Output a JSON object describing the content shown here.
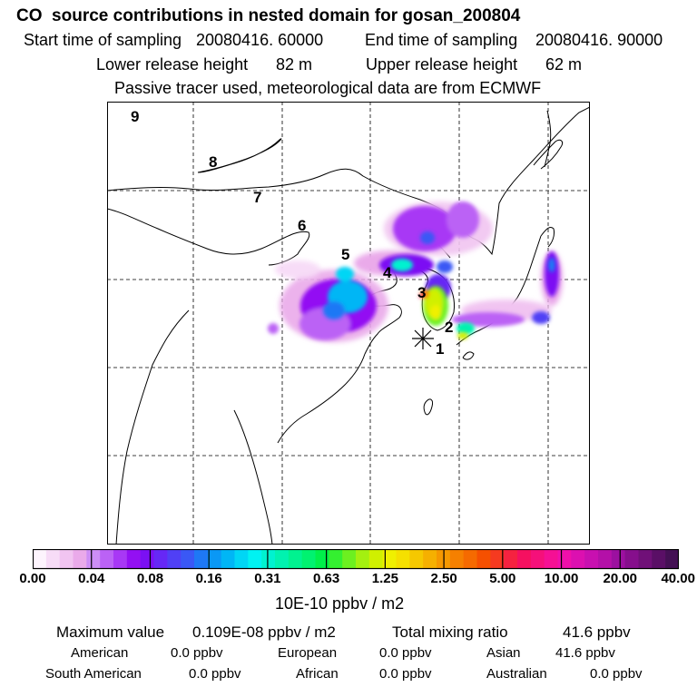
{
  "title": "CO  source contributions in nested domain for gosan_200804",
  "sampling": {
    "start_label": "Start time of sampling",
    "start_value": "20080416. 60000",
    "end_label": "End time of sampling",
    "end_value": "20080416. 90000"
  },
  "release": {
    "lower_label": "Lower release height",
    "lower_value": "82 m",
    "upper_label": "Upper release height",
    "upper_value": "62 m"
  },
  "tracer_note": "Passive tracer used, meteorological data are from ECMWF",
  "trajectory_markers": [
    "1",
    "2",
    "3",
    "4",
    "5",
    "6",
    "7",
    "8",
    "9"
  ],
  "colorbar": {
    "ticks": [
      "0.00",
      "0.04",
      "0.08",
      "0.16",
      "0.31",
      "0.63",
      "1.25",
      "2.50",
      "5.00",
      "10.00",
      "20.00",
      "40.00"
    ],
    "unit_label": "10E-10 ppbv / m2",
    "colors": [
      "#fdf4fd",
      "#f7dcf7",
      "#f1c4f1",
      "#eaaaea",
      "#cd8ef5",
      "#bb62f5",
      "#a838f5",
      "#9310f3",
      "#7b10f3",
      "#6628f5",
      "#5040f5",
      "#3a58f5",
      "#1e78f5",
      "#0a98f5",
      "#00b6f5",
      "#00d6f5",
      "#00f2f2",
      "#00f2d0",
      "#00f2b0",
      "#00f290",
      "#00f270",
      "#00f04a",
      "#34f030",
      "#6cf020",
      "#a4f010",
      "#d0f000",
      "#f0f000",
      "#f5e000",
      "#f5c800",
      "#f5b000",
      "#f59800",
      "#f58000",
      "#f56a00",
      "#f55000",
      "#f53a20",
      "#f52240",
      "#f51060",
      "#f5107a",
      "#f51094",
      "#f010aa",
      "#dc10b0",
      "#c810b0",
      "#b410a8",
      "#9c10a0",
      "#860f8c",
      "#701078",
      "#5a0f66",
      "#441054"
    ]
  },
  "stats": {
    "max_label": "Maximum value",
    "max_value": "0.109E-08 ppbv / m2",
    "total_label": "Total mixing ratio",
    "total_value": "41.6 ppbv"
  },
  "regions": [
    {
      "name": "American",
      "value": "0.0 ppbv"
    },
    {
      "name": "European",
      "value": "0.0 ppbv"
    },
    {
      "name": "Asian",
      "value": "41.6 ppbv"
    },
    {
      "name": "South American",
      "value": "0.0 ppbv"
    },
    {
      "name": "African",
      "value": "0.0 ppbv"
    },
    {
      "name": "Australian",
      "value": "0.0 ppbv"
    }
  ]
}
